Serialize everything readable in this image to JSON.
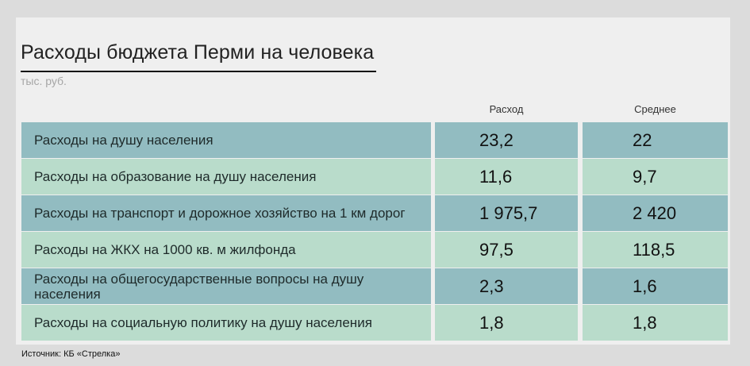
{
  "header": {
    "title": "Расходы бюджета Перми на человека",
    "subtitle": "тыс. руб."
  },
  "columns": {
    "spend": "Расход",
    "average": "Среднее"
  },
  "chart_data": {
    "type": "table",
    "title": "Расходы бюджета Перми на человека",
    "subtitle": "тыс. руб.",
    "columns": [
      "Расход",
      "Среднее"
    ],
    "rows": [
      {
        "label": "Расходы на душу населения",
        "spend": "23,2",
        "average": "22"
      },
      {
        "label": "Расходы на образование на душу населения",
        "spend": "11,6",
        "average": "9,7"
      },
      {
        "label": "Расходы на транспорт и дорожное хозяйство на 1 км дорог",
        "spend": "1 975,7",
        "average": "2 420"
      },
      {
        "label": "Расходы на ЖКХ на 1000 кв. м жилфонда",
        "spend": "97,5",
        "average": "118,5"
      },
      {
        "label": "Расходы на общегосударственные вопросы на душу населения",
        "spend": "2,3",
        "average": "1,6"
      },
      {
        "label": "Расходы на социальную политику на душу населения",
        "spend": "1,8",
        "average": "1,8"
      }
    ]
  },
  "source": "Источник: КБ «Стрелка»",
  "colors": {
    "row_dark": "#92bcc1",
    "row_light": "#b9dccb",
    "background": "#efefef"
  }
}
